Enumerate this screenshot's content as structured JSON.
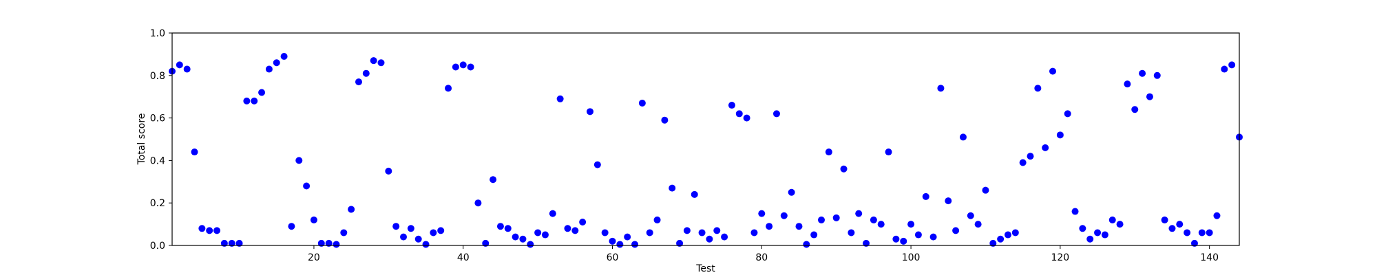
{
  "chart_data": {
    "type": "scatter",
    "title": "",
    "xlabel": "Test",
    "ylabel": "Total score",
    "xlim": [
      1,
      144
    ],
    "ylim": [
      0.0,
      1.0
    ],
    "xticks": [
      20,
      40,
      60,
      80,
      100,
      120,
      140
    ],
    "yticks": [
      0.0,
      0.2,
      0.4,
      0.6,
      0.8,
      1.0
    ],
    "ytick_labels": [
      "0.0",
      "0.2",
      "0.4",
      "0.6",
      "0.8",
      "1.0"
    ],
    "grid": false,
    "legend": "none",
    "marker_color": "#0000ff",
    "series": [
      {
        "x": [
          1,
          2,
          3,
          4,
          5,
          6,
          7,
          8,
          9,
          10,
          11,
          12,
          13,
          14,
          15,
          16,
          17,
          18,
          19,
          20,
          21,
          22,
          23,
          24,
          25,
          26,
          27,
          28,
          29,
          30,
          31,
          32,
          33,
          34,
          35,
          36,
          37,
          38,
          39,
          40,
          41,
          42,
          43,
          44,
          45,
          46,
          47,
          48,
          49,
          50,
          51,
          52,
          53,
          54,
          55,
          56,
          57,
          58,
          59,
          60,
          61,
          62,
          63,
          64,
          65,
          66,
          67,
          68,
          69,
          70,
          71,
          72,
          73,
          74,
          75,
          76,
          77,
          78,
          79,
          80,
          81,
          82,
          83,
          84,
          85,
          86,
          87,
          88,
          89,
          90,
          91,
          92,
          93,
          94,
          95,
          96,
          97,
          98,
          99,
          100,
          101,
          102,
          103,
          104,
          105,
          106,
          107,
          108,
          109,
          110,
          111,
          112,
          113,
          114,
          115,
          116,
          117,
          118,
          119,
          120,
          121,
          122,
          123,
          124,
          125,
          126,
          127,
          128,
          129,
          130,
          131,
          132,
          133,
          134,
          135,
          136,
          137,
          138,
          139,
          140,
          141,
          142,
          143,
          144
        ],
        "y": [
          0.82,
          0.85,
          0.83,
          0.44,
          0.08,
          0.07,
          0.07,
          0.01,
          0.01,
          0.01,
          0.68,
          0.68,
          0.72,
          0.83,
          0.86,
          0.89,
          0.09,
          0.4,
          0.28,
          0.12,
          0.01,
          0.01,
          0.005,
          0.06,
          0.17,
          0.77,
          0.81,
          0.87,
          0.86,
          0.35,
          0.09,
          0.04,
          0.08,
          0.03,
          0.005,
          0.06,
          0.07,
          0.74,
          0.84,
          0.85,
          0.84,
          0.2,
          0.01,
          0.31,
          0.09,
          0.08,
          0.04,
          0.03,
          0.005,
          0.06,
          0.05,
          0.15,
          0.69,
          0.08,
          0.07,
          0.11,
          0.63,
          0.38,
          0.06,
          0.02,
          0.005,
          0.04,
          0.005,
          0.67,
          0.06,
          0.12,
          0.59,
          0.27,
          0.01,
          0.07,
          0.24,
          0.06,
          0.03,
          0.07,
          0.04,
          0.66,
          0.62,
          0.6,
          0.06,
          0.15,
          0.09,
          0.62,
          0.14,
          0.25,
          0.09,
          0.005,
          0.05,
          0.12,
          0.44,
          0.13,
          0.36,
          0.06,
          0.15,
          0.01,
          0.12,
          0.1,
          0.44,
          0.03,
          0.02,
          0.1,
          0.05,
          0.23,
          0.04,
          0.74,
          0.21,
          0.07,
          0.51,
          0.14,
          0.1,
          0.26,
          0.01,
          0.03,
          0.05,
          0.06,
          0.39,
          0.42,
          0.74,
          0.46,
          0.82,
          0.52,
          0.62,
          0.16,
          0.08,
          0.03,
          0.06,
          0.05,
          0.12,
          0.1,
          0.76,
          0.64,
          0.81,
          0.7,
          0.8,
          0.12,
          0.08,
          0.1,
          0.06,
          0.01,
          0.06,
          0.06,
          0.14,
          0.83,
          0.85,
          0.51
        ]
      }
    ]
  }
}
